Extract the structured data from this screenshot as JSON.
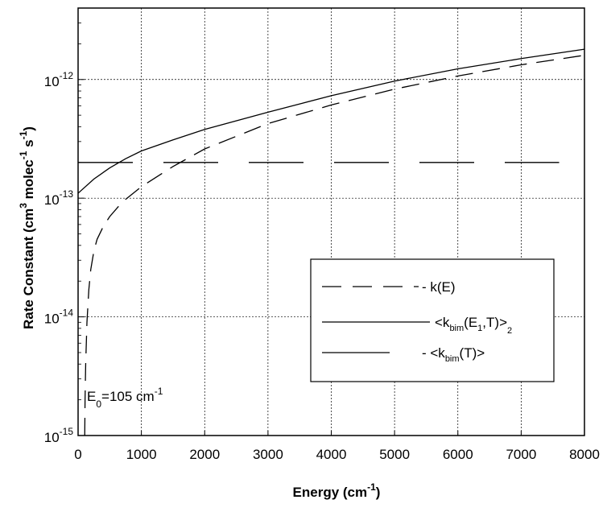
{
  "chart_data": {
    "type": "line",
    "xlabel": {
      "main": "Energy (cm",
      "sup": "-1",
      "tail": ")"
    },
    "ylabel": {
      "main": "Rate Constant  (cm",
      "sup1": "3",
      "mid": " molec",
      "sup2": "-1",
      "mid2": " s",
      "sup3": "-1",
      "tail": ")"
    },
    "xlim": [
      0,
      8000
    ],
    "ylim": [
      1e-15,
      4e-12
    ],
    "y_scale": "log",
    "grid": true,
    "x_ticks": [
      "0",
      "1000",
      "2000",
      "3000",
      "4000",
      "5000",
      "6000",
      "7000",
      "8000"
    ],
    "x_tick_values": [
      0,
      1000,
      2000,
      3000,
      4000,
      5000,
      6000,
      7000,
      8000
    ],
    "y_ticks": [
      {
        "value": 1e-15,
        "base": "10",
        "exp": "-15"
      },
      {
        "value": 1e-14,
        "base": "10",
        "exp": "-14"
      },
      {
        "value": 1e-13,
        "base": "10",
        "exp": "-13"
      },
      {
        "value": 1e-12,
        "base": "10",
        "exp": "-12"
      }
    ],
    "annotation": {
      "prefix": "E",
      "sub": "0",
      "rest": "=105 cm",
      "sup": "-1"
    },
    "legend_position": "lower-right",
    "series": [
      {
        "legend": {
          "pre": "- k(E)",
          "sub": "",
          "mid": "",
          "sub2": "",
          "post": ""
        },
        "style": "dashed",
        "x": [
          105,
          110,
          120,
          140,
          170,
          200,
          250,
          300,
          400,
          500,
          700,
          1000,
          1500,
          2000,
          3000,
          4000,
          5000,
          6000,
          7000,
          8000
        ],
        "y": [
          1e-15,
          2e-15,
          4e-15,
          9e-15,
          1.7e-14,
          2.5e-14,
          3.6e-14,
          4.5e-14,
          5.8e-14,
          7e-14,
          9.3e-14,
          1.25e-13,
          1.85e-13,
          2.6e-13,
          4.25e-13,
          6.1e-13,
          8.3e-13,
          1.07e-12,
          1.33e-12,
          1.6e-12
        ]
      },
      {
        "legend": {
          "pre": "<k",
          "sub": "bim",
          "mid": "(E",
          "sub2": "1",
          "post": ",T)>",
          "sub3": "2"
        },
        "style": "solid",
        "x": [
          0,
          250,
          500,
          750,
          1000,
          1500,
          2000,
          3000,
          4000,
          5000,
          6000,
          7000,
          8000
        ],
        "y": [
          1.1e-13,
          1.45e-13,
          1.8e-13,
          2.15e-13,
          2.5e-13,
          3.1e-13,
          3.8e-13,
          5.3e-13,
          7.3e-13,
          9.7e-13,
          1.23e-12,
          1.5e-12,
          1.8e-12
        ]
      },
      {
        "legend": {
          "pre": "- <k",
          "sub": "bim",
          "mid": "(T)>",
          "sub2": "",
          "post": ""
        },
        "style": "long-dash",
        "x": [
          0,
          7600
        ],
        "y": [
          2e-13,
          2e-13
        ]
      }
    ]
  }
}
